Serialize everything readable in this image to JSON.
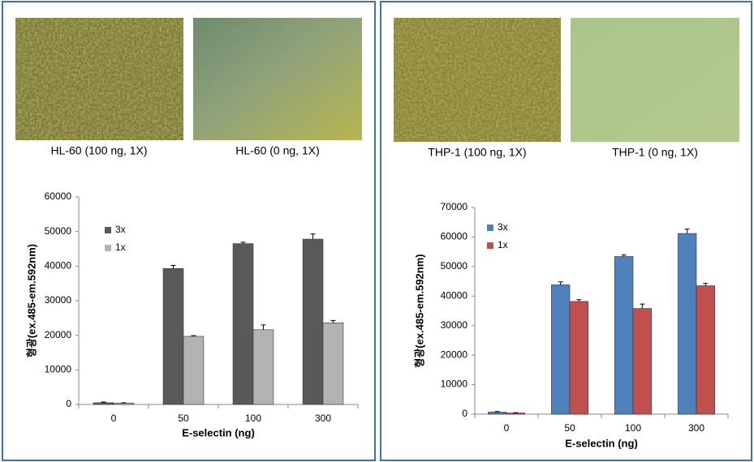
{
  "image_captions": [
    "HL-60 (100 ng, 1X)",
    "HL-60 (0 ng, 1X)",
    "THP-1 (100 ng, 1X)",
    "THP-1 (0 ng, 1X)"
  ],
  "chart_data": [
    {
      "type": "bar",
      "x_label": "E-selectin (ng)",
      "y_label": "형광(ex.485-em.592nm)",
      "categories": [
        "0",
        "50",
        "100",
        "300"
      ],
      "series": [
        {
          "name": "3x",
          "color": "#595959",
          "values": [
            500,
            39300,
            46500,
            47800
          ],
          "errors": [
            200,
            900,
            400,
            1500
          ]
        },
        {
          "name": "1x",
          "color": "#b3b3b3",
          "values": [
            400,
            19700,
            21600,
            23600
          ],
          "errors": [
            100,
            200,
            1400,
            700
          ]
        }
      ],
      "ylim": [
        0,
        60000
      ],
      "yticks": [
        0,
        10000,
        20000,
        30000,
        40000,
        50000,
        60000
      ]
    },
    {
      "type": "bar",
      "x_label": "E-selectin (ng)",
      "y_label": "형광(ex.485-em.592nm)",
      "categories": [
        "0",
        "50",
        "100",
        "300"
      ],
      "series": [
        {
          "name": "3x",
          "color": "#4f81bd",
          "values": [
            700,
            43800,
            53400,
            61200
          ],
          "errors": [
            200,
            1000,
            500,
            1500
          ]
        },
        {
          "name": "1x",
          "color": "#c0504d",
          "values": [
            400,
            38200,
            35800,
            43500
          ],
          "errors": [
            100,
            600,
            1500,
            800
          ]
        }
      ],
      "ylim": [
        0,
        70000
      ],
      "yticks": [
        0,
        10000,
        20000,
        30000,
        40000,
        50000,
        60000,
        70000
      ]
    }
  ]
}
